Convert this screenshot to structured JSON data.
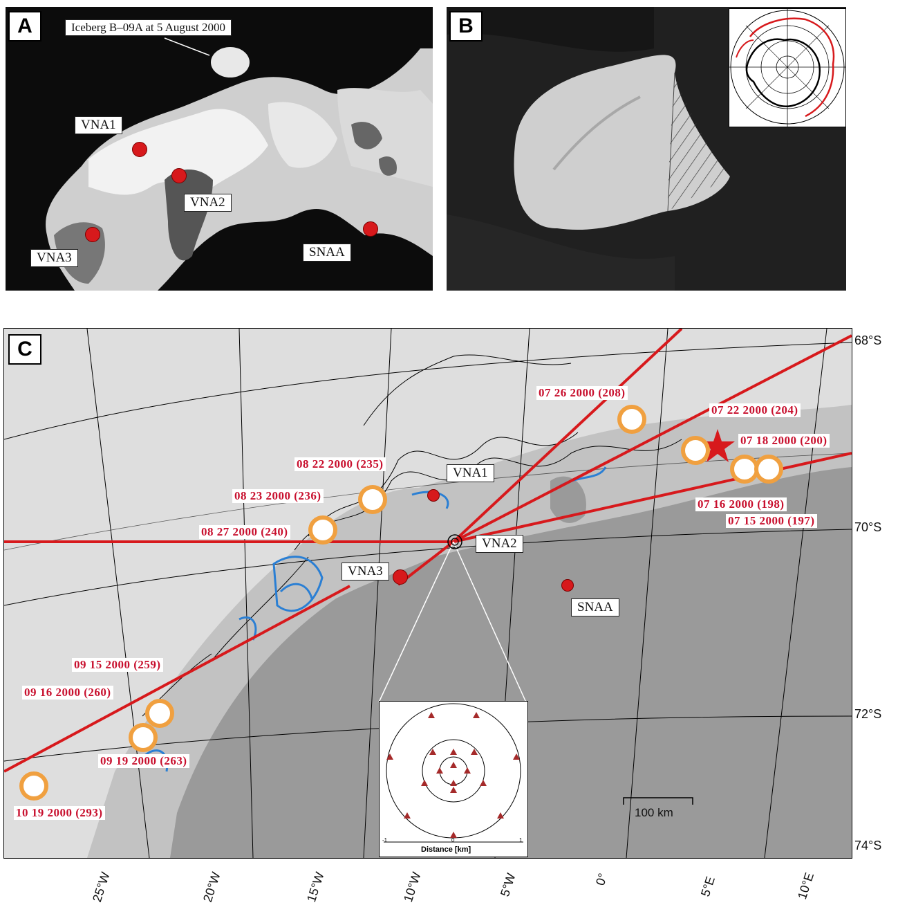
{
  "panelA": {
    "letter": "A",
    "iceberg_label": "Iceberg B–09A at 5 August 2000",
    "stations": [
      {
        "id": "VNA1",
        "label": "VNA1"
      },
      {
        "id": "VNA2",
        "label": "VNA2"
      },
      {
        "id": "VNA3",
        "label": "VNA3"
      },
      {
        "id": "SNAA",
        "label": "SNAA"
      }
    ]
  },
  "panelB": {
    "letter": "B"
  },
  "panelC": {
    "letter": "C",
    "stations": [
      {
        "id": "VNA1",
        "label": "VNA1"
      },
      {
        "id": "VNA2",
        "label": "VNA2"
      },
      {
        "id": "VNA3",
        "label": "VNA3"
      },
      {
        "id": "SNAA",
        "label": "SNAA"
      }
    ],
    "dates": [
      "07 26 2000 (208)",
      "07 22 2000 (204)",
      "07 18 2000 (200)",
      "07 16 2000 (198)",
      "07 15 2000 (197)",
      "08 22 2000 (235)",
      "08 23 2000 (236)",
      "08 27 2000 (240)",
      "09 15 2000 (259)",
      "09 16 2000 (260)",
      "09 19 2000 (263)",
      "10 19 2000 (293)"
    ],
    "latitudes": [
      "68°S",
      "70°S",
      "72°S",
      "74°S"
    ],
    "longitudes": [
      "25°W",
      "20°W",
      "15°W",
      "10°W",
      "5°W",
      "0°",
      "5°E",
      "10°E"
    ],
    "scale_bar": "100 km",
    "inset_xlabel": "Distance [km]",
    "inset_ticks": [
      "-1",
      "0",
      "1"
    ]
  },
  "colors": {
    "track_red": "#d7191c",
    "label_red": "#c8102e",
    "iceberg_orange": "#f0a040",
    "coast_blue": "#2a7fd4",
    "shelf_gray": "#9a9a9a",
    "sea_gray": "#dedede",
    "land_gray": "#c2c2c2"
  }
}
